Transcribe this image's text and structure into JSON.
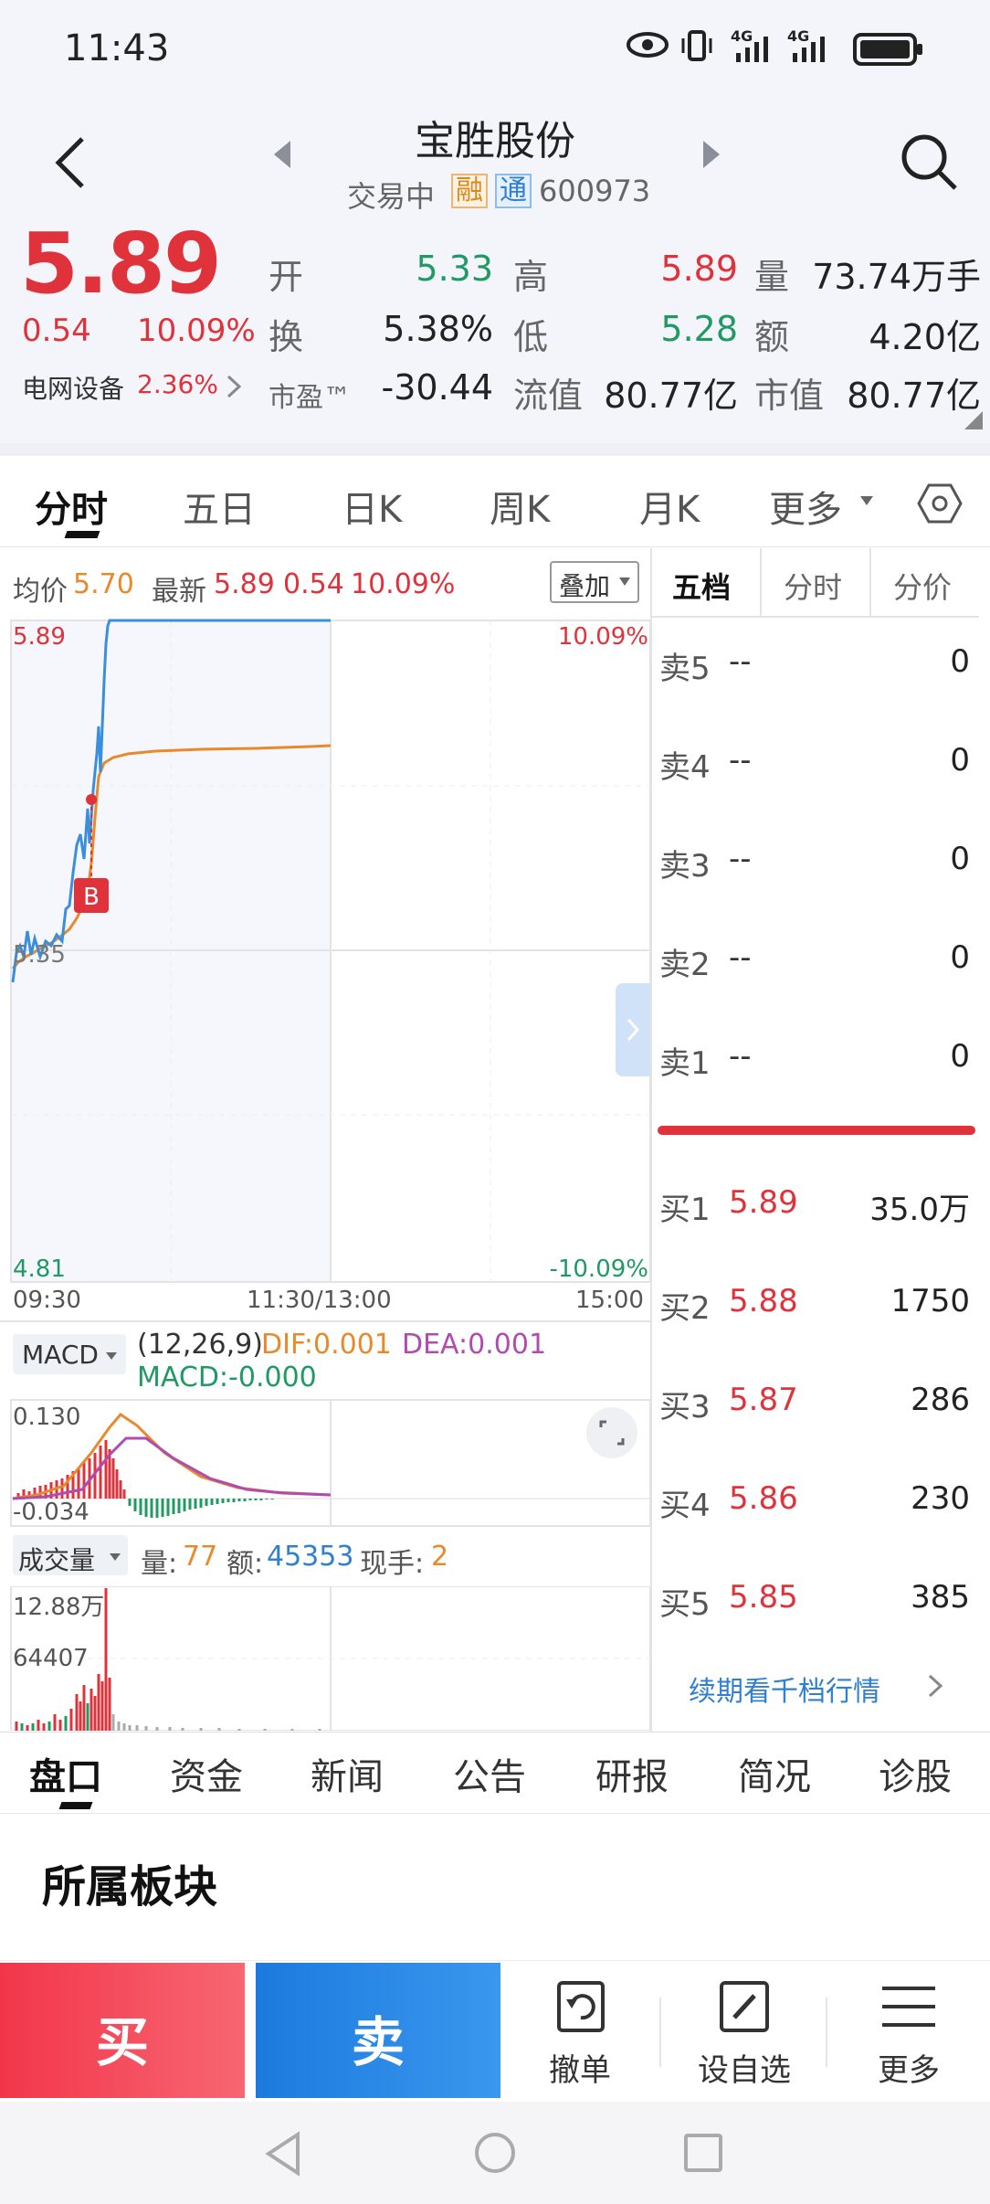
{
  "status": {
    "time": "11:43",
    "signal1": "4G",
    "signal2": "4G"
  },
  "header": {
    "title": "宝胜股份",
    "subtitle_status": "交易中",
    "badge_rong": "融",
    "badge_tong": "通",
    "code": "600973"
  },
  "quote": {
    "price": "5.89",
    "change": "0.54",
    "change_pct": "10.09%",
    "sector": "电网设备",
    "sector_pct": "2.36%",
    "open_label": "开",
    "open": "5.33",
    "high_label": "高",
    "high": "5.89",
    "vol_label": "量",
    "vol": "73.74万手",
    "turnover_label": "换",
    "turnover": "5.38%",
    "low_label": "低",
    "low": "5.28",
    "amount_label": "额",
    "amount": "4.20亿",
    "pe_label": "市盈™",
    "pe": "-30.44",
    "float_cap_label": "流值",
    "float_cap": "80.77亿",
    "mkt_cap_label": "市值",
    "mkt_cap": "80.77亿"
  },
  "tabs": [
    "分时",
    "五日",
    "日K",
    "周K",
    "月K",
    "更多"
  ],
  "chart_header": {
    "avg_label": "均价",
    "avg": "5.70",
    "latest_label": "最新",
    "latest": "5.89",
    "chg": "0.54",
    "pct": "10.09%",
    "overlay_btn": "叠加"
  },
  "axis": {
    "top_left": "5.89",
    "top_right": "10.09%",
    "mid_left": "5.35",
    "bottom_left": "4.81",
    "bottom_right": "-10.09%",
    "t_start": "09:30",
    "t_mid": "11:30/13:00",
    "t_end": "15:00",
    "buy_marker": "B"
  },
  "macd": {
    "selector": "MACD",
    "params": "(12,26,9)",
    "dif_label": "DIF:0.001",
    "dea_label": "DEA:0.001",
    "macd_label": "MACD:-0.000",
    "top": "0.130",
    "bottom": "-0.034"
  },
  "volume": {
    "selector": "成交量",
    "vol_label": "量:",
    "vol": "77",
    "amt_label": "额:",
    "amt": "45353",
    "hand_label": "现手:",
    "hand": "2",
    "top": "12.88万",
    "mid": "64407"
  },
  "orderbook": {
    "tabs": [
      "五档",
      "分时",
      "分价"
    ],
    "sells": [
      {
        "label": "卖5",
        "price": "--",
        "vol": "0"
      },
      {
        "label": "卖4",
        "price": "--",
        "vol": "0"
      },
      {
        "label": "卖3",
        "price": "--",
        "vol": "0"
      },
      {
        "label": "卖2",
        "price": "--",
        "vol": "0"
      },
      {
        "label": "卖1",
        "price": "--",
        "vol": "0"
      }
    ],
    "buys": [
      {
        "label": "买1",
        "price": "5.89",
        "vol": "35.0万"
      },
      {
        "label": "买2",
        "price": "5.88",
        "vol": "1750"
      },
      {
        "label": "买3",
        "price": "5.87",
        "vol": "286"
      },
      {
        "label": "买4",
        "price": "5.86",
        "vol": "230"
      },
      {
        "label": "买5",
        "price": "5.85",
        "vol": "385"
      }
    ],
    "more_link": "续期看千档行情"
  },
  "bottom_tabs": [
    "盘口",
    "资金",
    "新闻",
    "公告",
    "研报",
    "简况",
    "诊股"
  ],
  "section_title": "所属板块",
  "actions": {
    "buy": "买",
    "sell": "卖",
    "cancel": "撤单",
    "watch": "设自选",
    "more": "更多"
  },
  "colors": {
    "up": "#e0323a",
    "down": "#1f9a62",
    "price_line": "#3a8fdc",
    "avg_line": "#e8892b",
    "buy_btn": "#f2414f",
    "sell_btn": "#1e7fde"
  }
}
